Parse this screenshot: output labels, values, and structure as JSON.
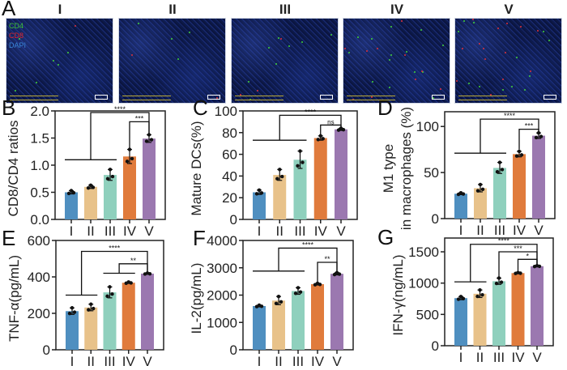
{
  "panel_a": {
    "letter": "A",
    "groups": [
      "I",
      "II",
      "III",
      "IV",
      "V"
    ],
    "legend": [
      {
        "label": "CD4",
        "color": "#3fc43a"
      },
      {
        "label": "CD8",
        "color": "#e0252a"
      },
      {
        "label": "DAPI",
        "color": "#3a86d8"
      }
    ]
  },
  "group_colors": [
    "#4f8fc0",
    "#e8c28a",
    "#8fd0bd",
    "#e07b3c",
    "#9b78b0"
  ],
  "chart_data": [
    {
      "letter": "B",
      "type": "bar",
      "title": "",
      "xlabel": "",
      "ylabel": "CD8/CD4 ratios",
      "categories": [
        "I",
        "II",
        "III",
        "IV",
        "V"
      ],
      "values": [
        0.5,
        0.6,
        0.82,
        1.16,
        1.49
      ],
      "sd": [
        0.03,
        0.03,
        0.1,
        0.13,
        0.07
      ],
      "ylim": [
        0,
        2.0
      ],
      "yticks": [
        "0.0",
        "0.5",
        "1.0",
        "1.5",
        "2.0"
      ],
      "ytick_values": [
        0,
        0.5,
        1.0,
        1.5,
        2.0
      ],
      "baselines": [
        {
          "from": 0,
          "to": 2,
          "y": 1.1
        }
      ],
      "brackets": [
        {
          "x1": 1,
          "x2": 4,
          "y": 1.97,
          "y1_end": 1.1,
          "y2_end": 1.58,
          "label": "****"
        },
        {
          "x1": 3,
          "x2": 4,
          "y": 1.8,
          "y1_end": 1.3,
          "y2_end": 1.58,
          "label": "***"
        }
      ]
    },
    {
      "letter": "C",
      "type": "bar",
      "title": "",
      "xlabel": "",
      "ylabel": "Mature DCs(%)",
      "categories": [
        "I",
        "II",
        "III",
        "IV",
        "V"
      ],
      "values": [
        25,
        41,
        55,
        75,
        83
      ],
      "sd": [
        2,
        5,
        8,
        2,
        1
      ],
      "ylim": [
        0,
        100
      ],
      "yticks": [
        "0",
        "20",
        "40",
        "60",
        "80",
        "100"
      ],
      "ytick_values": [
        0,
        20,
        40,
        60,
        80,
        100
      ],
      "baselines": [
        {
          "from": 0,
          "to": 2,
          "y": 73
        }
      ],
      "brackets": [
        {
          "x1": 1,
          "x2": 4,
          "y": 96,
          "y1_end": 73,
          "y2_end": 85,
          "label": "****"
        },
        {
          "x1": 3,
          "x2": 4,
          "y": 87,
          "y1_end": 78,
          "y2_end": 85,
          "label": "ns"
        }
      ]
    },
    {
      "letter": "D",
      "type": "bar",
      "title": "",
      "xlabel": "",
      "ylabel": "M1 type",
      "ylabel2": "in macrophages (%)",
      "categories": [
        "I",
        "II",
        "III",
        "IV",
        "V"
      ],
      "values": [
        27,
        33,
        55,
        70,
        90
      ],
      "sd": [
        1,
        4,
        6,
        3,
        3
      ],
      "ylim": [
        0,
        116
      ],
      "yticks": [
        "0",
        "50",
        "100"
      ],
      "ytick_values": [
        0,
        50,
        100
      ],
      "baselines": [
        {
          "from": 0,
          "to": 2,
          "y": 71
        }
      ],
      "brackets": [
        {
          "x1": 1,
          "x2": 4,
          "y": 108,
          "y1_end": 71,
          "y2_end": 94,
          "label": "****"
        },
        {
          "x1": 3,
          "x2": 4,
          "y": 97,
          "y1_end": 75,
          "y2_end": 94,
          "label": "***"
        }
      ]
    },
    {
      "letter": "E",
      "type": "bar",
      "title": "",
      "xlabel": "",
      "ylabel": "TNF-α(pg/mL)",
      "categories": [
        "I",
        "II",
        "III",
        "IV",
        "V"
      ],
      "values": [
        212,
        232,
        315,
        368,
        418
      ],
      "sd": [
        18,
        18,
        30,
        4,
        3
      ],
      "ylim": [
        0,
        600
      ],
      "yticks": [
        "0",
        "200",
        "400",
        "600"
      ],
      "ytick_values": [
        0,
        200,
        400,
        600
      ],
      "baselines": [
        {
          "from": 0,
          "to": 1,
          "y": 300
        },
        {
          "from": 2,
          "to": 3,
          "y": 420
        }
      ],
      "brackets": [
        {
          "x1": 0.5,
          "x2": 4,
          "y": 540,
          "y1_end": 300,
          "y2_end": 425,
          "label": "****"
        },
        {
          "x1": 2.5,
          "x2": 4,
          "y": 472,
          "y1_end": 420,
          "y2_end": 425,
          "label": "**"
        }
      ]
    },
    {
      "letter": "F",
      "type": "bar",
      "title": "",
      "xlabel": "",
      "ylabel": "IL-2(pg/mL)",
      "categories": [
        "I",
        "II",
        "III",
        "IV",
        "V"
      ],
      "values": [
        1600,
        1800,
        2150,
        2400,
        2780
      ],
      "sd": [
        30,
        150,
        120,
        30,
        40
      ],
      "ylim": [
        0,
        4000
      ],
      "yticks": [
        "0",
        "1000",
        "2000",
        "3000",
        "4000"
      ],
      "ytick_values": [
        0,
        1000,
        2000,
        3000,
        4000
      ],
      "baselines": [
        {
          "from": 0,
          "to": 2,
          "y": 2880
        }
      ],
      "brackets": [
        {
          "x1": 1,
          "x2": 4,
          "y": 3720,
          "y1_end": 2880,
          "y2_end": 2850,
          "label": "****"
        },
        {
          "x1": 3,
          "x2": 4,
          "y": 3200,
          "y1_end": 2480,
          "y2_end": 2850,
          "label": "**"
        }
      ]
    },
    {
      "letter": "G",
      "type": "bar",
      "title": "",
      "xlabel": "",
      "ylabel": "IFN-γ(ng/mL)",
      "categories": [
        "I",
        "II",
        "III",
        "IV",
        "V"
      ],
      "values": [
        760,
        830,
        1030,
        1160,
        1270
      ],
      "sd": [
        25,
        60,
        50,
        8,
        8
      ],
      "ylim": [
        0,
        1720
      ],
      "yticks": [
        "0",
        "500",
        "1000",
        "1500"
      ],
      "ytick_values": [
        0,
        500,
        1000,
        1500
      ],
      "baselines": [
        {
          "from": 0,
          "to": 1,
          "y": 1020
        }
      ],
      "brackets": [
        {
          "x1": 0.5,
          "x2": 4,
          "y": 1620,
          "y1_end": 1020,
          "y2_end": 1290,
          "label": "****"
        },
        {
          "x1": 2,
          "x2": 4,
          "y": 1500,
          "y1_end": 1100,
          "y2_end": 1290,
          "label": "***"
        },
        {
          "x1": 3,
          "x2": 4,
          "y": 1380,
          "y1_end": 1180,
          "y2_end": 1290,
          "label": "*"
        }
      ]
    }
  ]
}
